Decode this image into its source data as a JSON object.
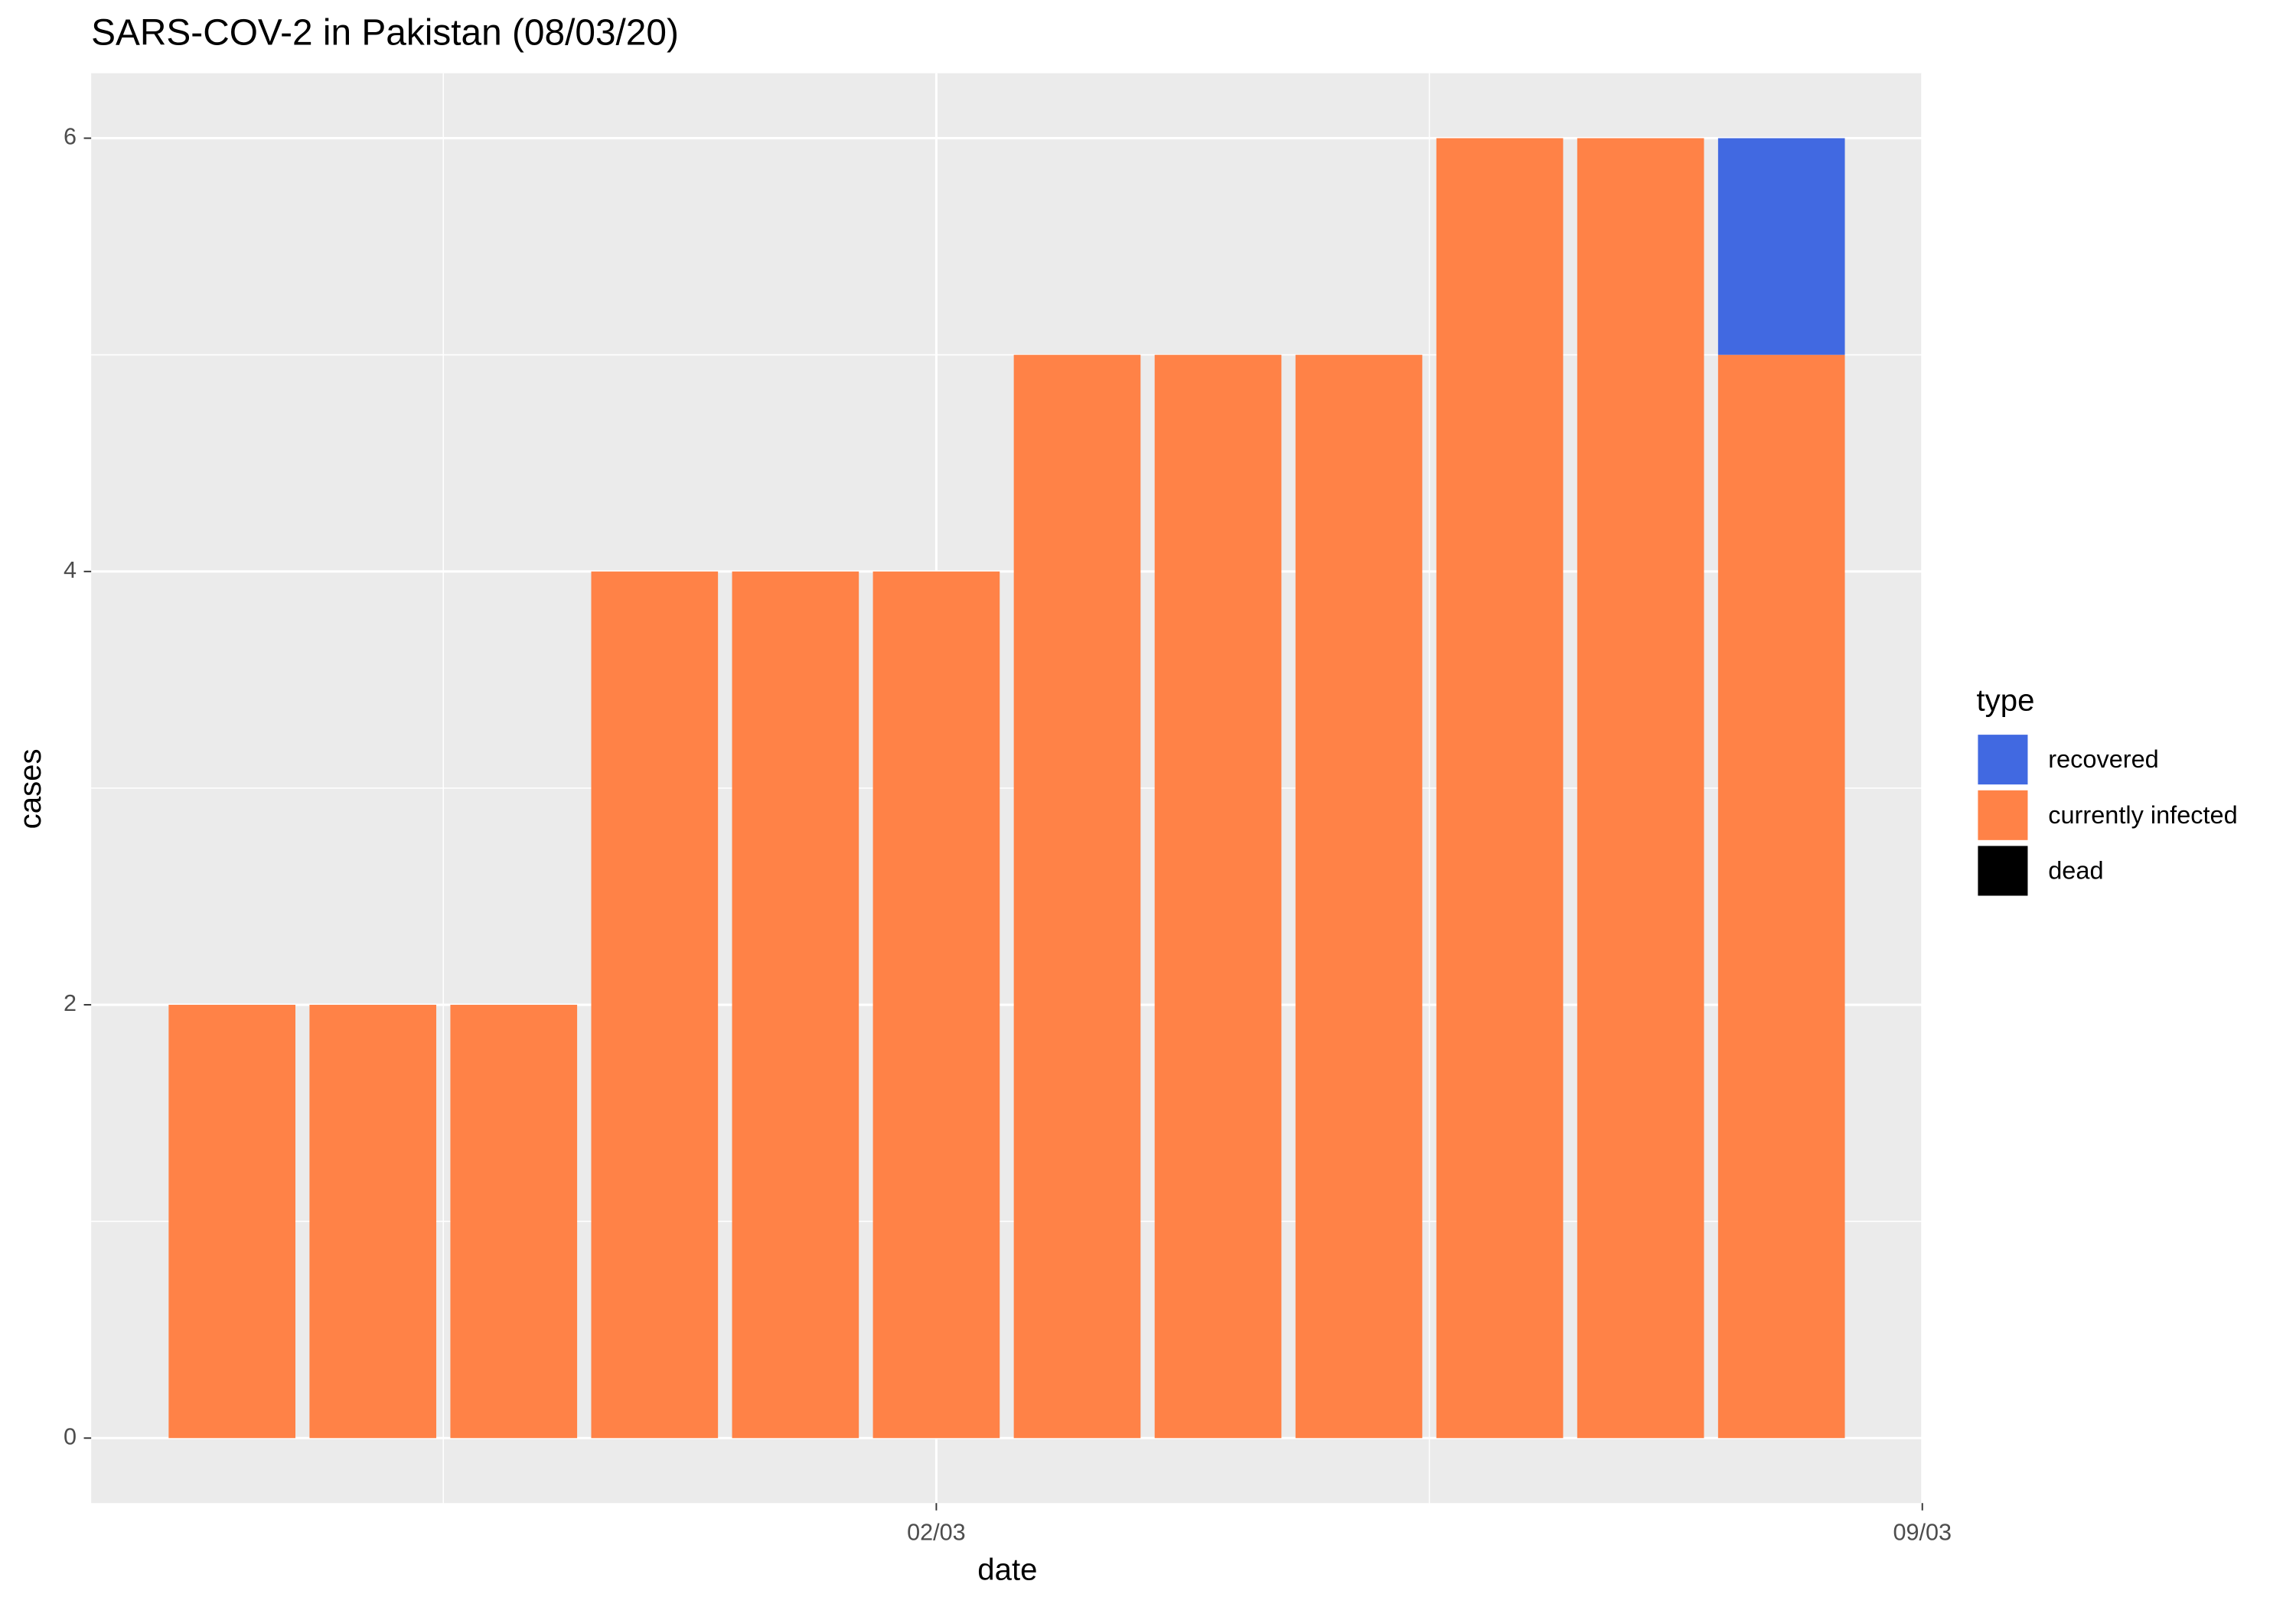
{
  "chart_data": {
    "type": "stacked-bar",
    "title": "SARS-COV-2 in Pakistan (08/03/20)",
    "x_label": "date",
    "y_label": "cases",
    "legend_title": "type",
    "legend_position": "right",
    "grid": true,
    "x": [
      "26/02",
      "27/02",
      "28/02",
      "29/02",
      "01/03",
      "02/03",
      "03/03",
      "04/03",
      "05/03",
      "06/03",
      "07/03",
      "08/03"
    ],
    "xlim": [
      "25/02",
      "09/03"
    ],
    "xticks": [
      "02/03",
      "09/03"
    ],
    "ylim": [
      -0.3,
      6.3
    ],
    "yticks": [
      0,
      2,
      4,
      6
    ],
    "series": [
      {
        "name": "recovered",
        "color": "#4169E1",
        "values": [
          0,
          0,
          0,
          0,
          0,
          0,
          0,
          0,
          0,
          0,
          0,
          1
        ]
      },
      {
        "name": "currently infected",
        "color": "#FF8247",
        "values": [
          2,
          2,
          2,
          4,
          4,
          4,
          5,
          5,
          5,
          6,
          6,
          5
        ]
      },
      {
        "name": "dead",
        "color": "#000000",
        "values": [
          0,
          0,
          0,
          0,
          0,
          0,
          0,
          0,
          0,
          0,
          0,
          0
        ]
      }
    ]
  }
}
